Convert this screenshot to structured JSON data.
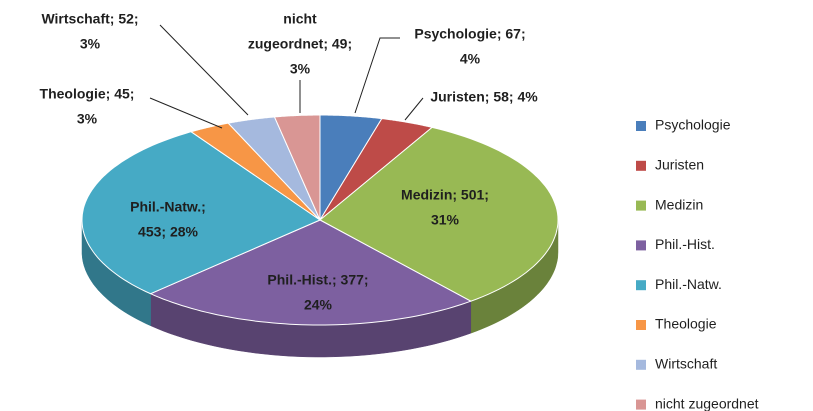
{
  "chart_data": {
    "type": "pie3d",
    "categories": [
      "Psychologie",
      "Juristen",
      "Medizin",
      "Phil.-Hist.",
      "Phil.-Natw.",
      "Theologie",
      "Wirtschaft",
      "nicht zugeordnet"
    ],
    "values": [
      67,
      58,
      501,
      377,
      453,
      45,
      52,
      49
    ],
    "value_labels": [
      [
        "Psychologie;  67;",
        "4%"
      ],
      [
        "Juristen; 58; 4%"
      ],
      [
        "Medizin; 501;",
        "31%"
      ],
      [
        "Phil.-Hist.; 377;",
        "24%"
      ],
      [
        "Phil.-Natw.;",
        "453; 28%"
      ],
      [
        "Theologie; 45;",
        "3%"
      ],
      [
        "Wirtschaft; 52;",
        "3%"
      ],
      [
        "nicht",
        "zugeordnet; 49;",
        "3%"
      ]
    ],
    "colors": [
      "#4a7ebb",
      "#be4b48",
      "#98b954",
      "#7d60a0",
      "#46aac5",
      "#f79646",
      "#a5b9de",
      "#d99694"
    ],
    "legend": "right"
  }
}
